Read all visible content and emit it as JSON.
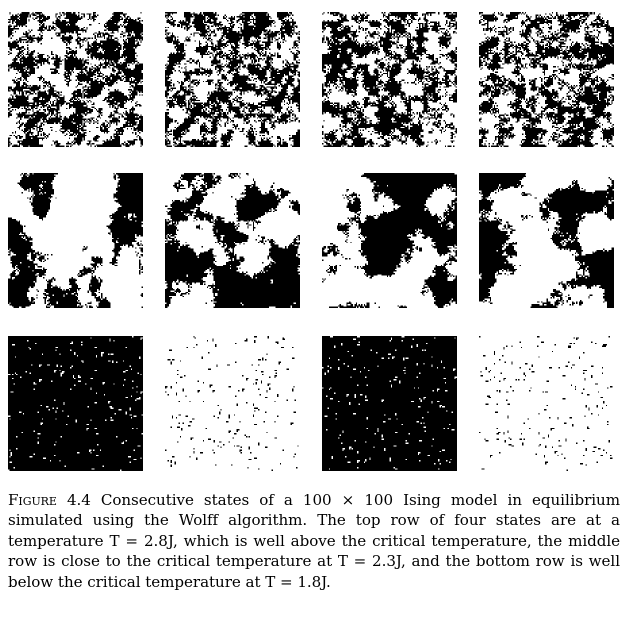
{
  "figure": {
    "label": "Figure 4.4",
    "caption": "Consecutive states of a 100 × 100 Ising model in equilibrium simulated using the Wolff algorithm. The top row of four states are at a temperature T = 2.8J, which is well above the critical temperature, the middle row is close to the critical temperature at T = 2.3J, and the bottom row is well below the critical temperature at T = 1.8J.",
    "lattice_size": 100,
    "rows": [
      {
        "temperature": "T = 2.8J",
        "panels": [
          {
            "pattern": "high-temperature",
            "black_fraction": 0.5
          },
          {
            "pattern": "high-temperature",
            "black_fraction": 0.5
          },
          {
            "pattern": "high-temperature",
            "black_fraction": 0.5
          },
          {
            "pattern": "high-temperature",
            "black_fraction": 0.5
          }
        ]
      },
      {
        "temperature": "T = 2.3J",
        "panels": [
          {
            "pattern": "critical-clusters",
            "black_fraction": 0.35
          },
          {
            "pattern": "critical-clusters",
            "black_fraction": 0.52
          },
          {
            "pattern": "critical-clusters",
            "black_fraction": 0.45
          },
          {
            "pattern": "critical-clusters",
            "black_fraction": 0.4
          }
        ]
      },
      {
        "temperature": "T = 1.8J",
        "panels": [
          {
            "pattern": "ordered-black",
            "black_fraction": 0.97
          },
          {
            "pattern": "ordered-white",
            "black_fraction": 0.03
          },
          {
            "pattern": "ordered-black",
            "black_fraction": 0.97
          },
          {
            "pattern": "ordered-white",
            "black_fraction": 0.03
          }
        ]
      }
    ]
  }
}
